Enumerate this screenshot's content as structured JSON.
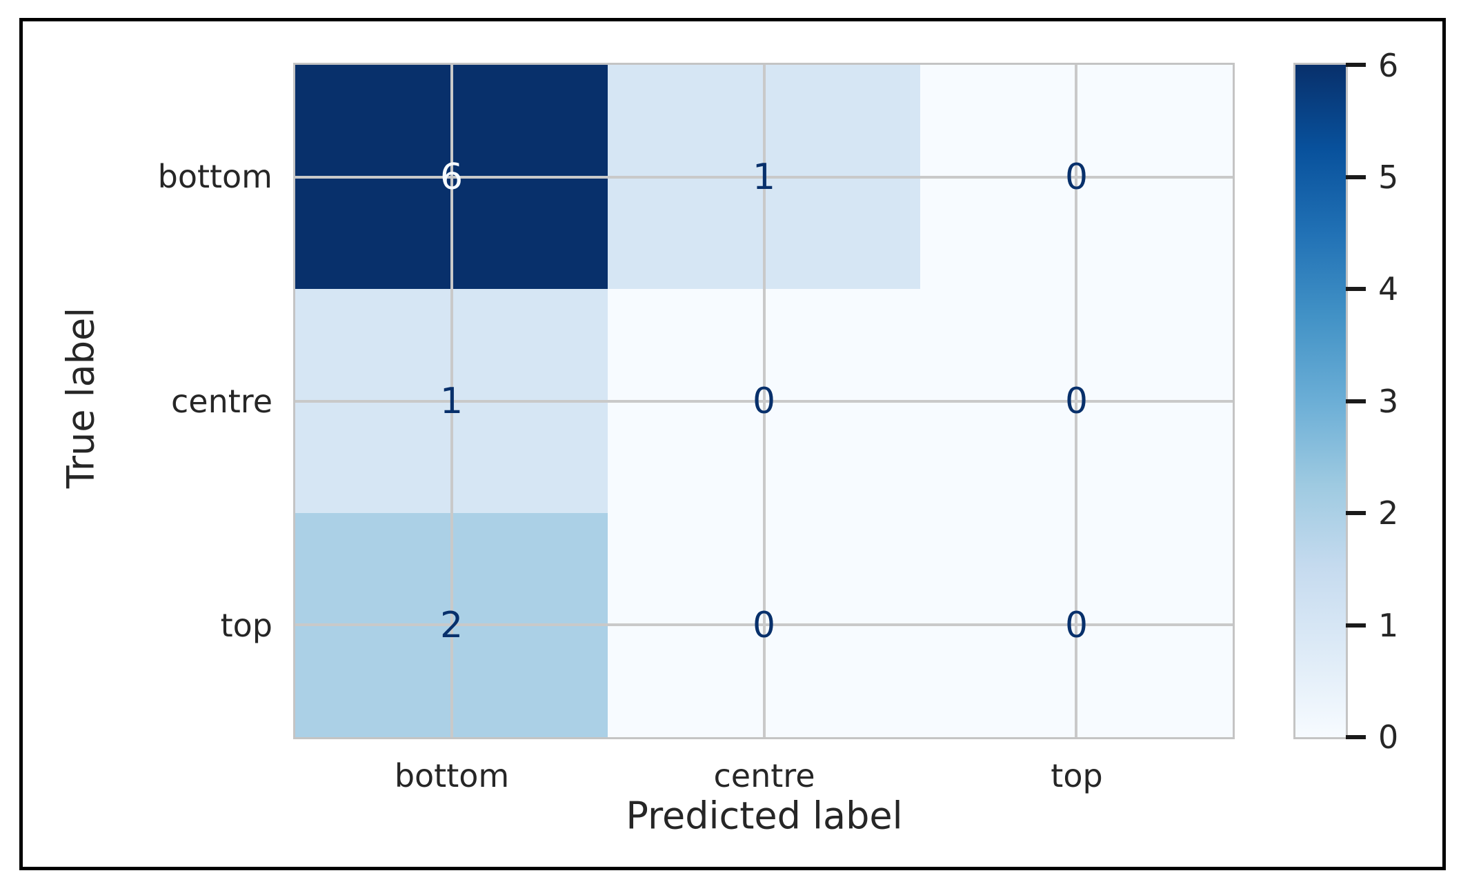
{
  "chart_data": {
    "type": "heatmap",
    "title": "",
    "xlabel": "Predicted label",
    "ylabel": "True label",
    "x_categories": [
      "bottom",
      "centre",
      "top"
    ],
    "y_categories": [
      "bottom",
      "centre",
      "top"
    ],
    "matrix": [
      [
        6,
        1,
        0
      ],
      [
        1,
        0,
        0
      ],
      [
        2,
        0,
        0
      ]
    ],
    "vmin": 0,
    "vmax": 6,
    "colormap": "Blues",
    "colormap_stops": [
      "#f7fbff",
      "#deebf7",
      "#c6dbef",
      "#9ecae1",
      "#6baed6",
      "#4292c6",
      "#2171b5",
      "#08519c",
      "#08306b"
    ],
    "colorbar_ticks": [
      0,
      1,
      2,
      3,
      4,
      5,
      6
    ],
    "grid": true,
    "legend_position": "right-colorbar"
  },
  "styles": {
    "frame_color": "#000000",
    "background_color": "#ffffff",
    "grid_color": "#c9c9c9",
    "spine_color": "#c4c4c4",
    "tick_text_color": "#262626",
    "annotation_color_on_dark": "#f7fbff",
    "annotation_color_on_light": "#08306b",
    "colorbar_tick_mark_color": "#1a1a1a"
  }
}
